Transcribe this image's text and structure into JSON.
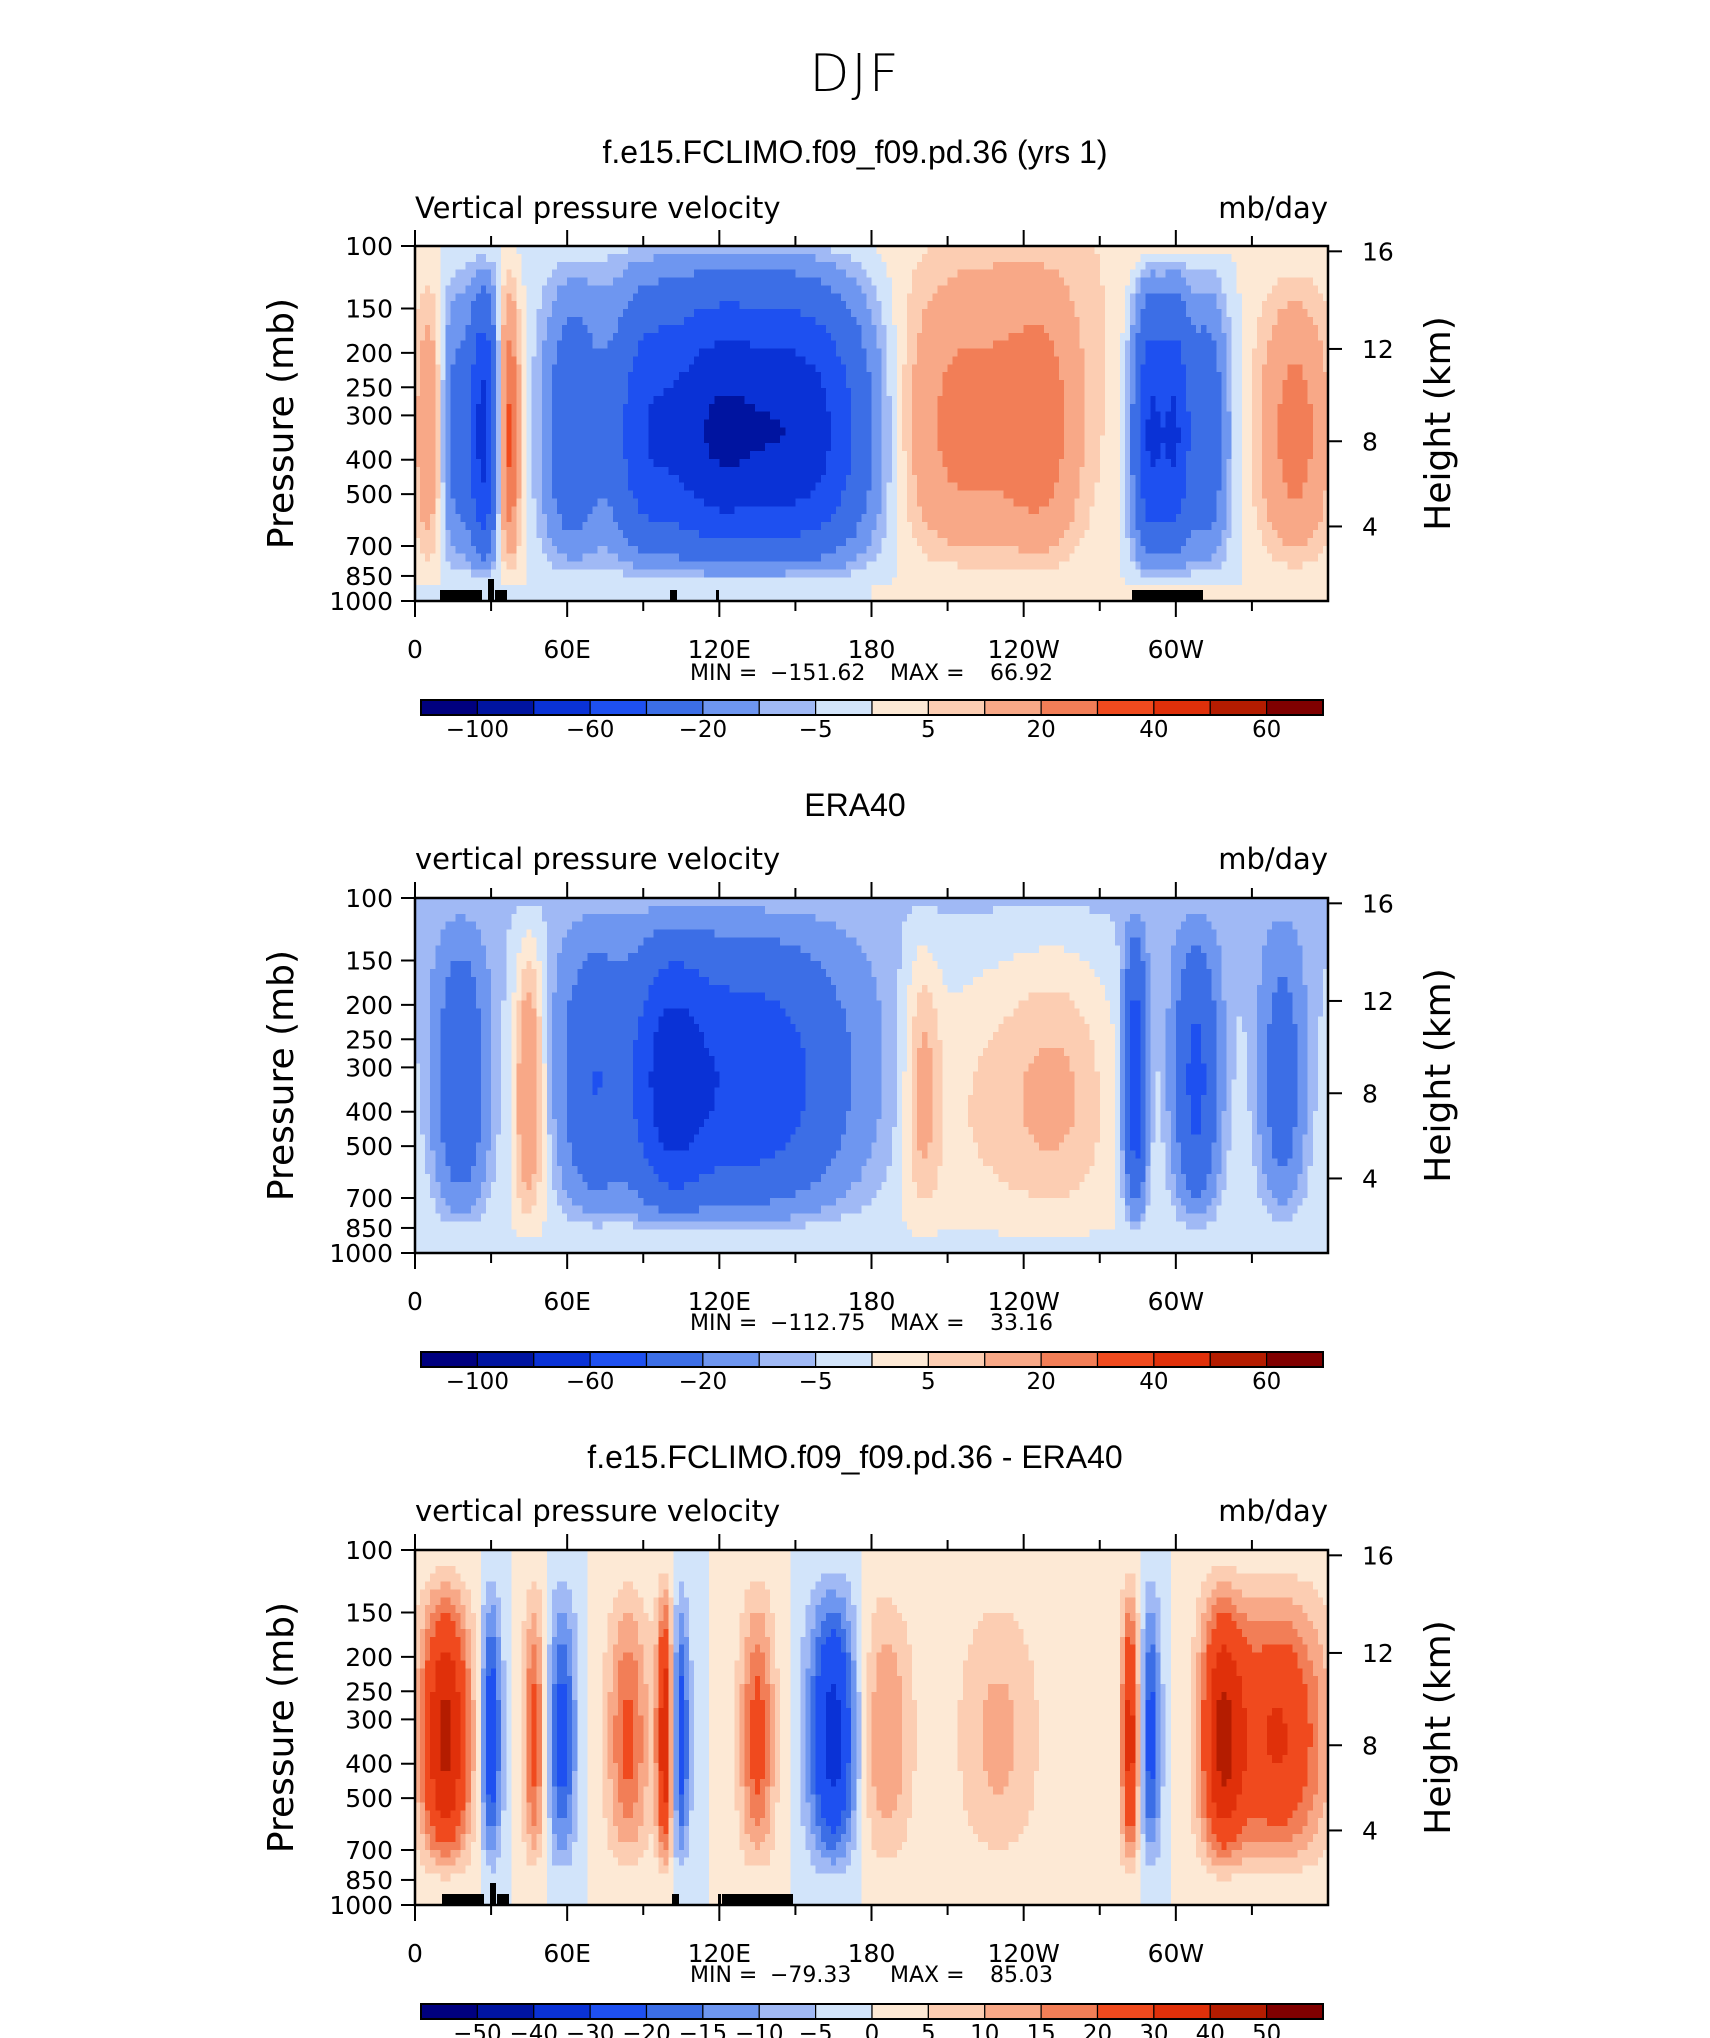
{
  "main_title": "DJF",
  "colors": {
    "full_field": [
      "#00007f",
      "#0014a0",
      "#0a32d6",
      "#1e50f0",
      "#3c6ee6",
      "#6e96f0",
      "#a0b9f5",
      "#d2e4fa",
      "#fde9d5",
      "#fccdb2",
      "#f8a887",
      "#f27e57",
      "#f04a1e",
      "#e0300a",
      "#b41c00",
      "#800000"
    ],
    "difference": [
      "#00007f",
      "#0014a0",
      "#0a32d6",
      "#1e50f0",
      "#3c6ee6",
      "#6e96f0",
      "#a0b9f5",
      "#d2e4fa",
      "#fde9d5",
      "#fccdb2",
      "#f8a887",
      "#f27e57",
      "#f04a1e",
      "#e0300a",
      "#b41c00",
      "#800000"
    ]
  },
  "chart_data": [
    {
      "type": "heatmap",
      "title": "f.e15.FCLIMO.f09_f09.pd.36 (yrs 1)",
      "variable_label": "Vertical pressure velocity",
      "units": "mb/day",
      "ylabel": "Pressure (mb)",
      "ylabel_right": "Height (km)",
      "x_ticks": [
        "0",
        "60E",
        "120E",
        "180",
        "120W",
        "60W"
      ],
      "y_ticks": [
        "100",
        "150",
        "200",
        "250",
        "300",
        "400",
        "500",
        "700",
        "850",
        "1000"
      ],
      "y_ticks_right": [
        "16",
        "12",
        "8",
        "4"
      ],
      "min_label": "MIN =",
      "min": "−151.62",
      "max_label": "MAX =",
      "max": "66.92",
      "colorbar_labels": [
        "−100",
        "−60",
        "−20",
        "−5",
        "5",
        "20",
        "40",
        "60"
      ],
      "levels": [
        -120,
        -100,
        -80,
        -60,
        -40,
        -20,
        -10,
        -5,
        0,
        5,
        10,
        20,
        30,
        40,
        50,
        60,
        70
      ]
    },
    {
      "type": "heatmap",
      "title": "ERA40",
      "variable_label": "vertical pressure velocity",
      "units": "mb/day",
      "ylabel": "Pressure (mb)",
      "ylabel_right": "Height (km)",
      "x_ticks": [
        "0",
        "60E",
        "120E",
        "180",
        "120W",
        "60W"
      ],
      "y_ticks": [
        "100",
        "150",
        "200",
        "250",
        "300",
        "400",
        "500",
        "700",
        "850",
        "1000"
      ],
      "y_ticks_right": [
        "16",
        "12",
        "8",
        "4"
      ],
      "min_label": "MIN =",
      "min": "−112.75",
      "max_label": "MAX =",
      "max": "33.16",
      "colorbar_labels": [
        "−100",
        "−60",
        "−20",
        "−5",
        "5",
        "20",
        "40",
        "60"
      ],
      "levels": [
        -120,
        -100,
        -80,
        -60,
        -40,
        -20,
        -10,
        -5,
        0,
        5,
        10,
        20,
        30,
        40,
        50,
        60,
        70
      ]
    },
    {
      "type": "heatmap",
      "title": "f.e15.FCLIMO.f09_f09.pd.36 - ERA40",
      "variable_label": "vertical pressure velocity",
      "units": "mb/day",
      "ylabel": "Pressure (mb)",
      "ylabel_right": "Height (km)",
      "x_ticks": [
        "0",
        "60E",
        "120E",
        "180",
        "120W",
        "60W"
      ],
      "y_ticks": [
        "100",
        "150",
        "200",
        "250",
        "300",
        "400",
        "500",
        "700",
        "850",
        "1000"
      ],
      "y_ticks_right": [
        "16",
        "12",
        "8",
        "4"
      ],
      "min_label": "MIN =",
      "min": "−79.33",
      "max_label": "MAX =",
      "max": "85.03",
      "colorbar_labels": [
        "−50",
        "−40",
        "−30",
        "−20",
        "−15",
        "−10",
        "−5",
        "0",
        "5",
        "10",
        "15",
        "20",
        "30",
        "40",
        "50"
      ],
      "levels": [
        -60,
        -50,
        -40,
        -30,
        -20,
        -15,
        -10,
        -5,
        0,
        5,
        10,
        15,
        20,
        30,
        40,
        50,
        60
      ]
    }
  ]
}
